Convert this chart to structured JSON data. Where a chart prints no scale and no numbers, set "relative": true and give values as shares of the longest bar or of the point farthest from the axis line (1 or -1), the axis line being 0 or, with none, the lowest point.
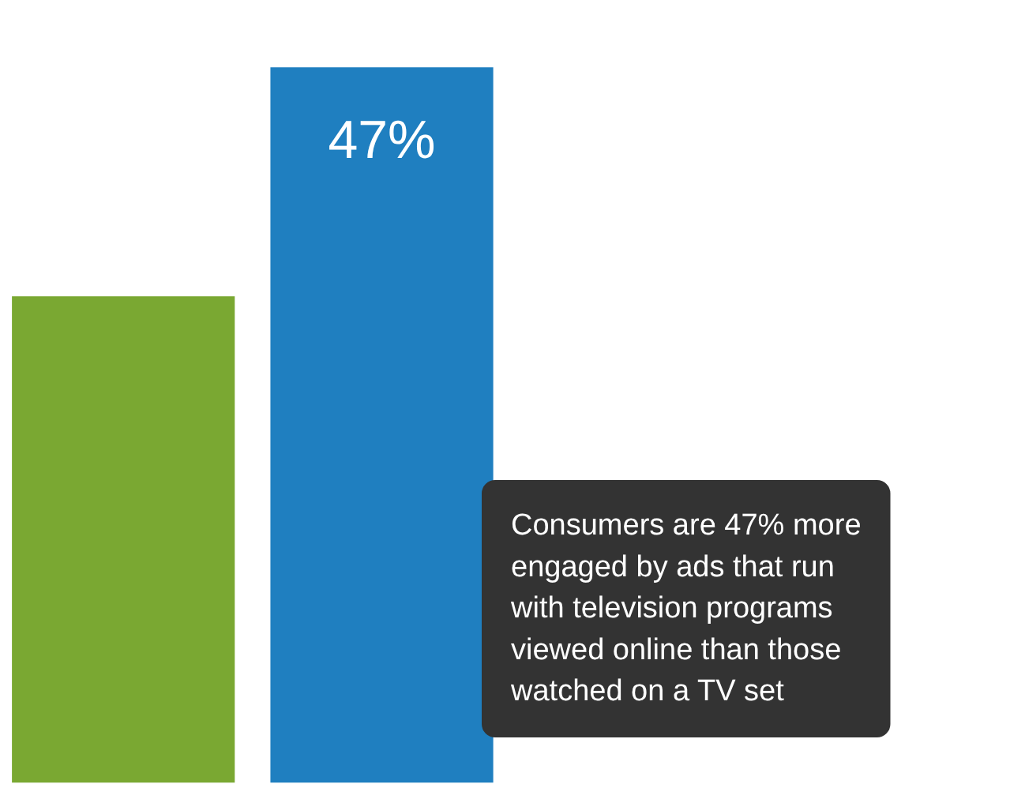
{
  "chart_data": {
    "type": "bar",
    "relative": true,
    "categories": [
      null,
      null
    ],
    "values": [
      0.68,
      1
    ],
    "colors": [
      "#7aa832",
      "#1f7fc0"
    ],
    "annotations": [
      "47%",
      "Consumers are 47% more engaged by ads that run with television programs viewed online than those watched on a TV set"
    ]
  }
}
